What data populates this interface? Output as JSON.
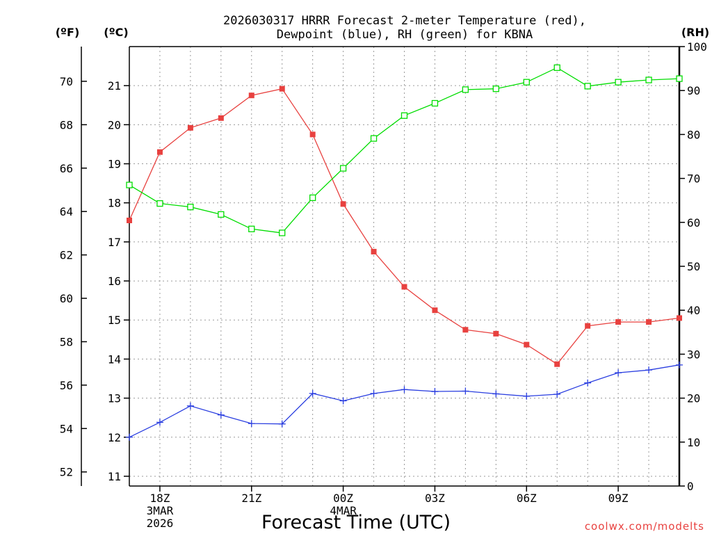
{
  "chart_data": {
    "type": "line",
    "title_line1": "2026030317 HRRR Forecast 2-meter Temperature (red),",
    "title_line2": "Dewpoint (blue), RH (green) for KBNA",
    "xlabel": "Forecast Time (UTC)",
    "credit": "coolwx.com/modelts",
    "units": {
      "fahrenheit": "(ºF)",
      "celsius": "(ºC)",
      "rh": "(RH)"
    },
    "x_hours": [
      17,
      18,
      19,
      20,
      21,
      22,
      23,
      24,
      25,
      26,
      27,
      28,
      29,
      30,
      31,
      32,
      33,
      34,
      35
    ],
    "x_range": [
      17,
      35
    ],
    "x_ticks": [
      {
        "hour": 18,
        "lines": [
          "18Z",
          "3MAR",
          "2026"
        ]
      },
      {
        "hour": 21,
        "lines": [
          "21Z"
        ]
      },
      {
        "hour": 24,
        "lines": [
          "00Z",
          "4MAR"
        ]
      },
      {
        "hour": 27,
        "lines": [
          "03Z"
        ]
      },
      {
        "hour": 30,
        "lines": [
          "06Z"
        ]
      },
      {
        "hour": 33,
        "lines": [
          "09Z"
        ]
      }
    ],
    "celsius_range": [
      10.75,
      22.0
    ],
    "celsius_ticks": [
      11,
      12,
      13,
      14,
      15,
      16,
      17,
      18,
      19,
      20,
      21
    ],
    "fahrenheit_ticks": [
      52,
      54,
      56,
      58,
      60,
      62,
      64,
      66,
      68,
      70
    ],
    "rh_range": [
      0,
      100
    ],
    "rh_ticks": [
      0,
      10,
      20,
      30,
      40,
      50,
      60,
      70,
      80,
      90,
      100
    ],
    "series": [
      {
        "name": "Temperature",
        "axis": "celsius",
        "color": "#e8413f",
        "marker": "filled-square",
        "values": [
          17.55,
          19.3,
          19.92,
          20.17,
          20.75,
          20.92,
          19.75,
          17.97,
          16.75,
          15.85,
          15.25,
          14.75,
          14.65,
          14.37,
          13.87,
          14.85,
          14.95,
          14.95,
          15.05
        ]
      },
      {
        "name": "Dewpoint",
        "axis": "celsius",
        "color": "#2a3ee0",
        "marker": "plus",
        "values": [
          12.0,
          12.38,
          12.8,
          12.57,
          12.35,
          12.34,
          13.12,
          12.93,
          13.12,
          13.22,
          13.17,
          13.18,
          13.11,
          13.05,
          13.1,
          13.39,
          13.65,
          13.72,
          13.85
        ]
      },
      {
        "name": "RH",
        "axis": "rh",
        "color": "#00dd00",
        "marker": "open-square",
        "values": [
          68.5,
          64.3,
          63.5,
          61.8,
          58.5,
          57.6,
          65.6,
          72.3,
          79.1,
          84.3,
          87.1,
          90.2,
          90.4,
          91.9,
          95.2,
          91.0,
          91.9,
          92.4,
          92.7
        ]
      }
    ]
  }
}
